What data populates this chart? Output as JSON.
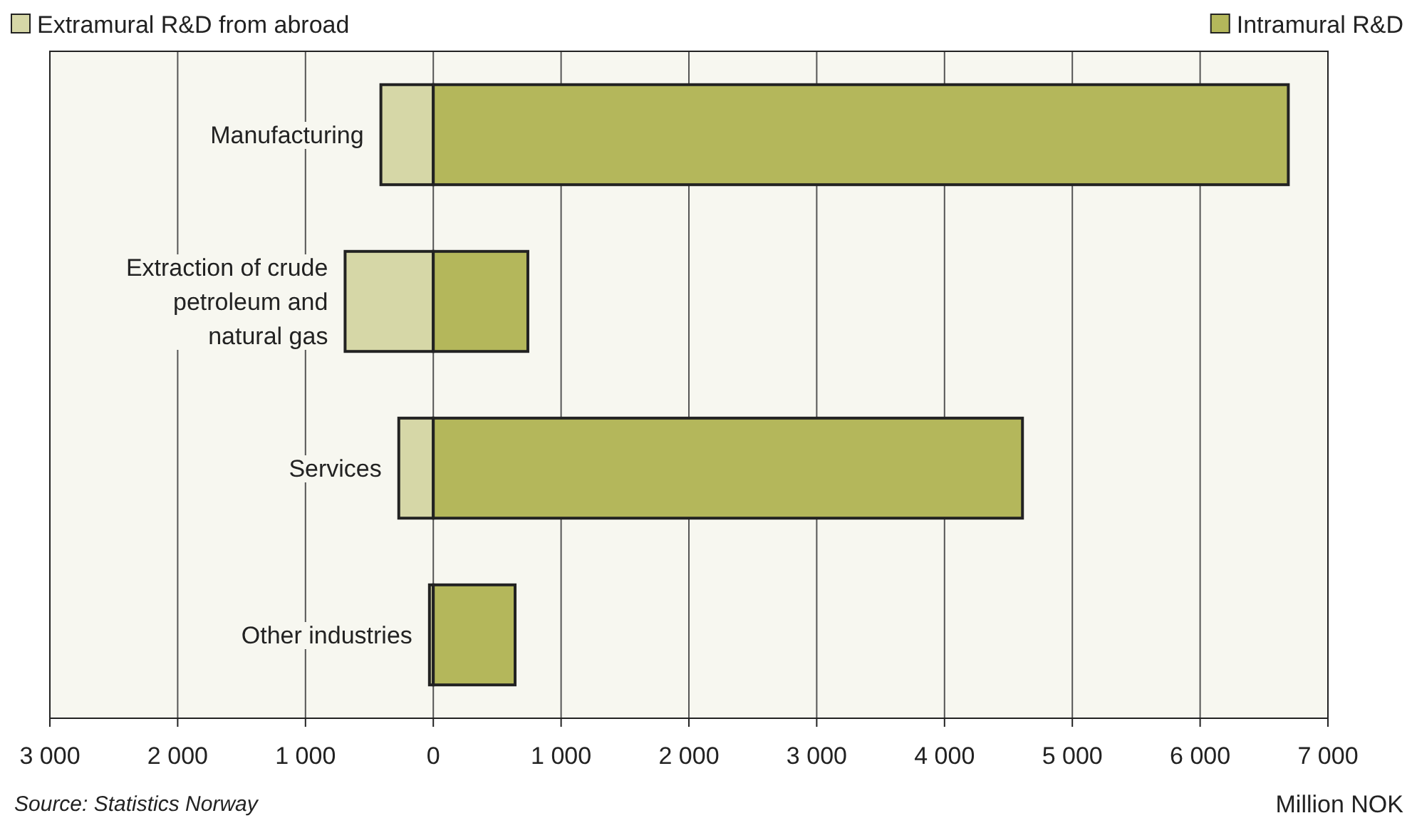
{
  "chart_data": {
    "type": "bar",
    "orientation": "horizontal",
    "stacked": true,
    "categories": [
      "Manufacturing",
      "Extraction of crude petroleum and natural gas",
      "Services",
      "Other industries"
    ],
    "series": [
      {
        "name": "Extramural R&D from abroad",
        "color": "#d6d7a7",
        "values": [
          -410,
          -690,
          -270,
          -30
        ]
      },
      {
        "name": "Intramural R&D",
        "color": "#b4b75b",
        "values": [
          6690,
          740,
          4610,
          640
        ]
      }
    ],
    "xlim": [
      -3000,
      7000
    ],
    "xticks": [
      {
        "value": -3000,
        "label": "3 000"
      },
      {
        "value": -2000,
        "label": "2 000"
      },
      {
        "value": -1000,
        "label": "1 000"
      },
      0,
      {
        "value": 1000,
        "label": "1 000"
      },
      {
        "value": 2000,
        "label": "2 000"
      },
      {
        "value": 3000,
        "label": "3 000"
      },
      {
        "value": 4000,
        "label": "4 000"
      },
      {
        "value": 5000,
        "label": "5 000"
      },
      {
        "value": 6000,
        "label": "6 000"
      },
      {
        "value": 7000,
        "label": "7 000"
      }
    ],
    "xlabel": "Million NOK",
    "grid": "x",
    "legend": "top",
    "annotations": [
      "Source: Statistics Norway"
    ]
  }
}
